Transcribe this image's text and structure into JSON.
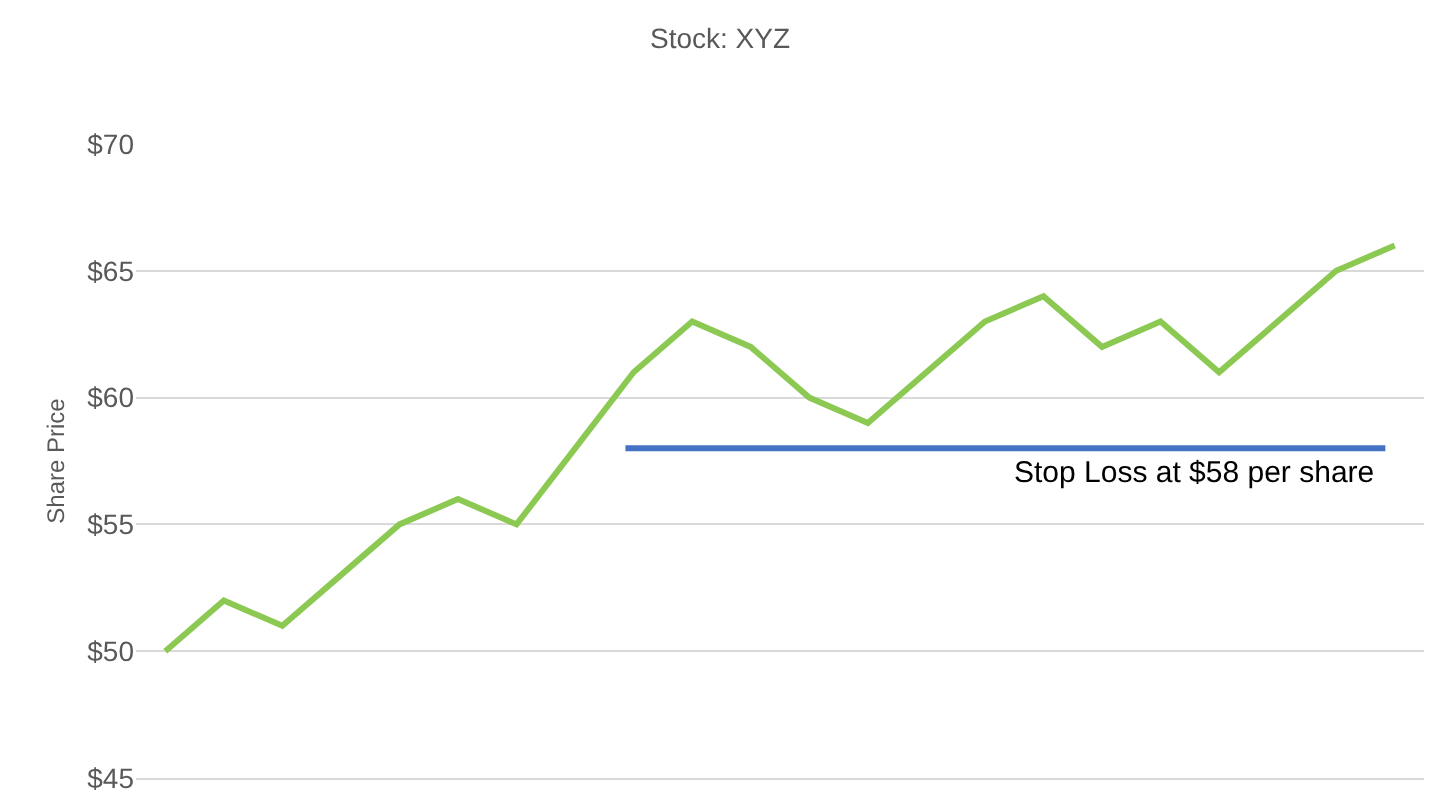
{
  "chart_data": {
    "type": "line",
    "title": "Stock: XYZ",
    "ylabel": "Share Price",
    "categories": [
      null,
      null,
      null,
      null,
      null,
      null,
      null,
      null,
      null,
      null,
      null,
      null,
      null,
      null,
      null,
      null,
      null,
      null,
      null,
      null,
      null,
      null
    ],
    "series": [
      {
        "color": "#8cc953",
        "values": [
          50,
          52,
          51,
          53,
          55,
          56,
          55,
          58,
          61,
          63,
          62,
          60,
          59,
          61,
          63,
          64,
          62,
          63,
          61,
          63,
          65,
          66
        ]
      }
    ],
    "ylim": [
      45,
      70
    ],
    "yticks": [
      {
        "value": 45,
        "label": "$45"
      },
      {
        "value": 50,
        "label": "$50"
      },
      {
        "value": 55,
        "label": "$55"
      },
      {
        "value": 60,
        "label": "$60"
      },
      {
        "value": 65,
        "label": "$65"
      },
      {
        "value": 70,
        "label": "$70"
      }
    ],
    "ref_lines": [
      {
        "axis": "y",
        "value": 58,
        "label": "Stop Loss at $58 per share",
        "color": "#4472c4"
      }
    ],
    "grid": "y",
    "marker": "none",
    "line_style": "solid"
  }
}
